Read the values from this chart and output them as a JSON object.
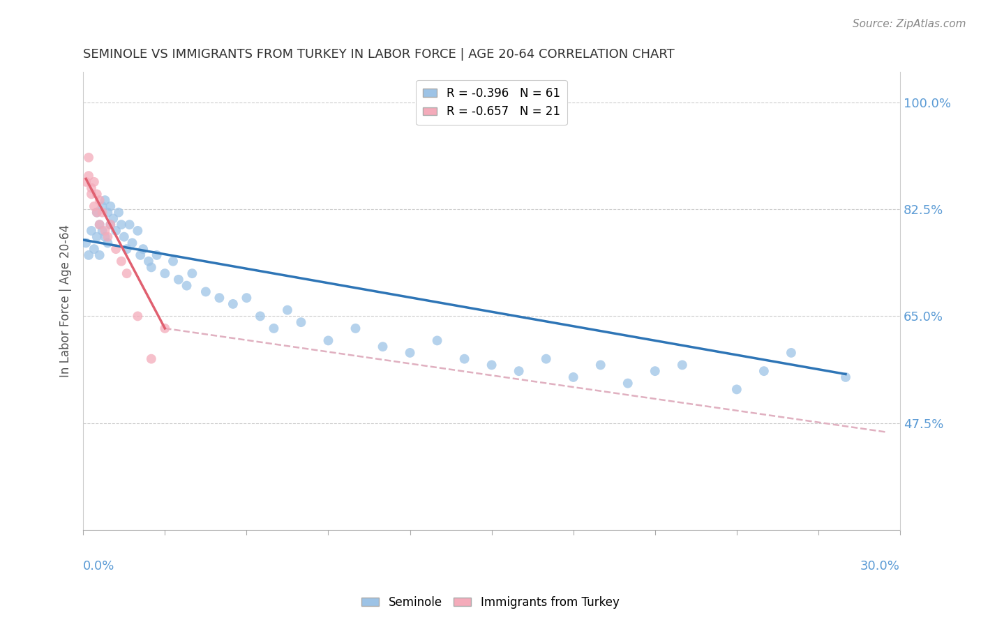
{
  "title": "SEMINOLE VS IMMIGRANTS FROM TURKEY IN LABOR FORCE | AGE 20-64 CORRELATION CHART",
  "source": "Source: ZipAtlas.com",
  "ylabel": "In Labor Force | Age 20-64",
  "yticks": [
    0.475,
    0.65,
    0.825,
    1.0
  ],
  "ytick_labels": [
    "47.5%",
    "65.0%",
    "82.5%",
    "100.0%"
  ],
  "xlim": [
    0.0,
    0.3
  ],
  "ylim": [
    0.3,
    1.05
  ],
  "legend1_r": "R = -0.396",
  "legend1_n": "N = 61",
  "legend2_r": "R = -0.657",
  "legend2_n": "N = 21",
  "color_seminole": "#9DC3E6",
  "color_turkey": "#F4ABBA",
  "color_line_seminole": "#2E75B6",
  "color_line_turkey": "#E06070",
  "color_dashed": "#E0B0C0",
  "axis_label_color": "#5B9BD5",
  "seminole_x": [
    0.001,
    0.002,
    0.003,
    0.004,
    0.005,
    0.005,
    0.006,
    0.006,
    0.007,
    0.007,
    0.008,
    0.008,
    0.009,
    0.009,
    0.01,
    0.01,
    0.011,
    0.012,
    0.013,
    0.014,
    0.015,
    0.016,
    0.017,
    0.018,
    0.02,
    0.021,
    0.022,
    0.024,
    0.025,
    0.027,
    0.03,
    0.033,
    0.035,
    0.038,
    0.04,
    0.045,
    0.05,
    0.055,
    0.06,
    0.065,
    0.07,
    0.075,
    0.08,
    0.09,
    0.1,
    0.11,
    0.12,
    0.13,
    0.14,
    0.15,
    0.16,
    0.17,
    0.18,
    0.19,
    0.2,
    0.21,
    0.22,
    0.24,
    0.25,
    0.26,
    0.28
  ],
  "seminole_y": [
    0.77,
    0.75,
    0.79,
    0.76,
    0.82,
    0.78,
    0.8,
    0.75,
    0.83,
    0.79,
    0.84,
    0.78,
    0.82,
    0.77,
    0.83,
    0.8,
    0.81,
    0.79,
    0.82,
    0.8,
    0.78,
    0.76,
    0.8,
    0.77,
    0.79,
    0.75,
    0.76,
    0.74,
    0.73,
    0.75,
    0.72,
    0.74,
    0.71,
    0.7,
    0.72,
    0.69,
    0.68,
    0.67,
    0.68,
    0.65,
    0.63,
    0.66,
    0.64,
    0.61,
    0.63,
    0.6,
    0.59,
    0.61,
    0.58,
    0.57,
    0.56,
    0.58,
    0.55,
    0.57,
    0.54,
    0.56,
    0.57,
    0.53,
    0.56,
    0.59,
    0.55
  ],
  "turkey_x": [
    0.001,
    0.002,
    0.002,
    0.003,
    0.003,
    0.004,
    0.004,
    0.005,
    0.005,
    0.006,
    0.006,
    0.007,
    0.008,
    0.009,
    0.01,
    0.012,
    0.014,
    0.016,
    0.02,
    0.025,
    0.03
  ],
  "turkey_y": [
    0.87,
    0.91,
    0.88,
    0.86,
    0.85,
    0.87,
    0.83,
    0.85,
    0.82,
    0.84,
    0.8,
    0.82,
    0.79,
    0.78,
    0.8,
    0.76,
    0.74,
    0.72,
    0.65,
    0.58,
    0.63
  ],
  "sem_line_x0": 0.0,
  "sem_line_x1": 0.28,
  "sem_line_y0": 0.775,
  "sem_line_y1": 0.555,
  "tur_line_x0": 0.001,
  "tur_line_x1": 0.03,
  "tur_line_y0": 0.875,
  "tur_line_y1": 0.63,
  "dash_line_x0": 0.03,
  "dash_line_x1": 0.295,
  "dash_line_y0": 0.63,
  "dash_line_y1": 0.46
}
